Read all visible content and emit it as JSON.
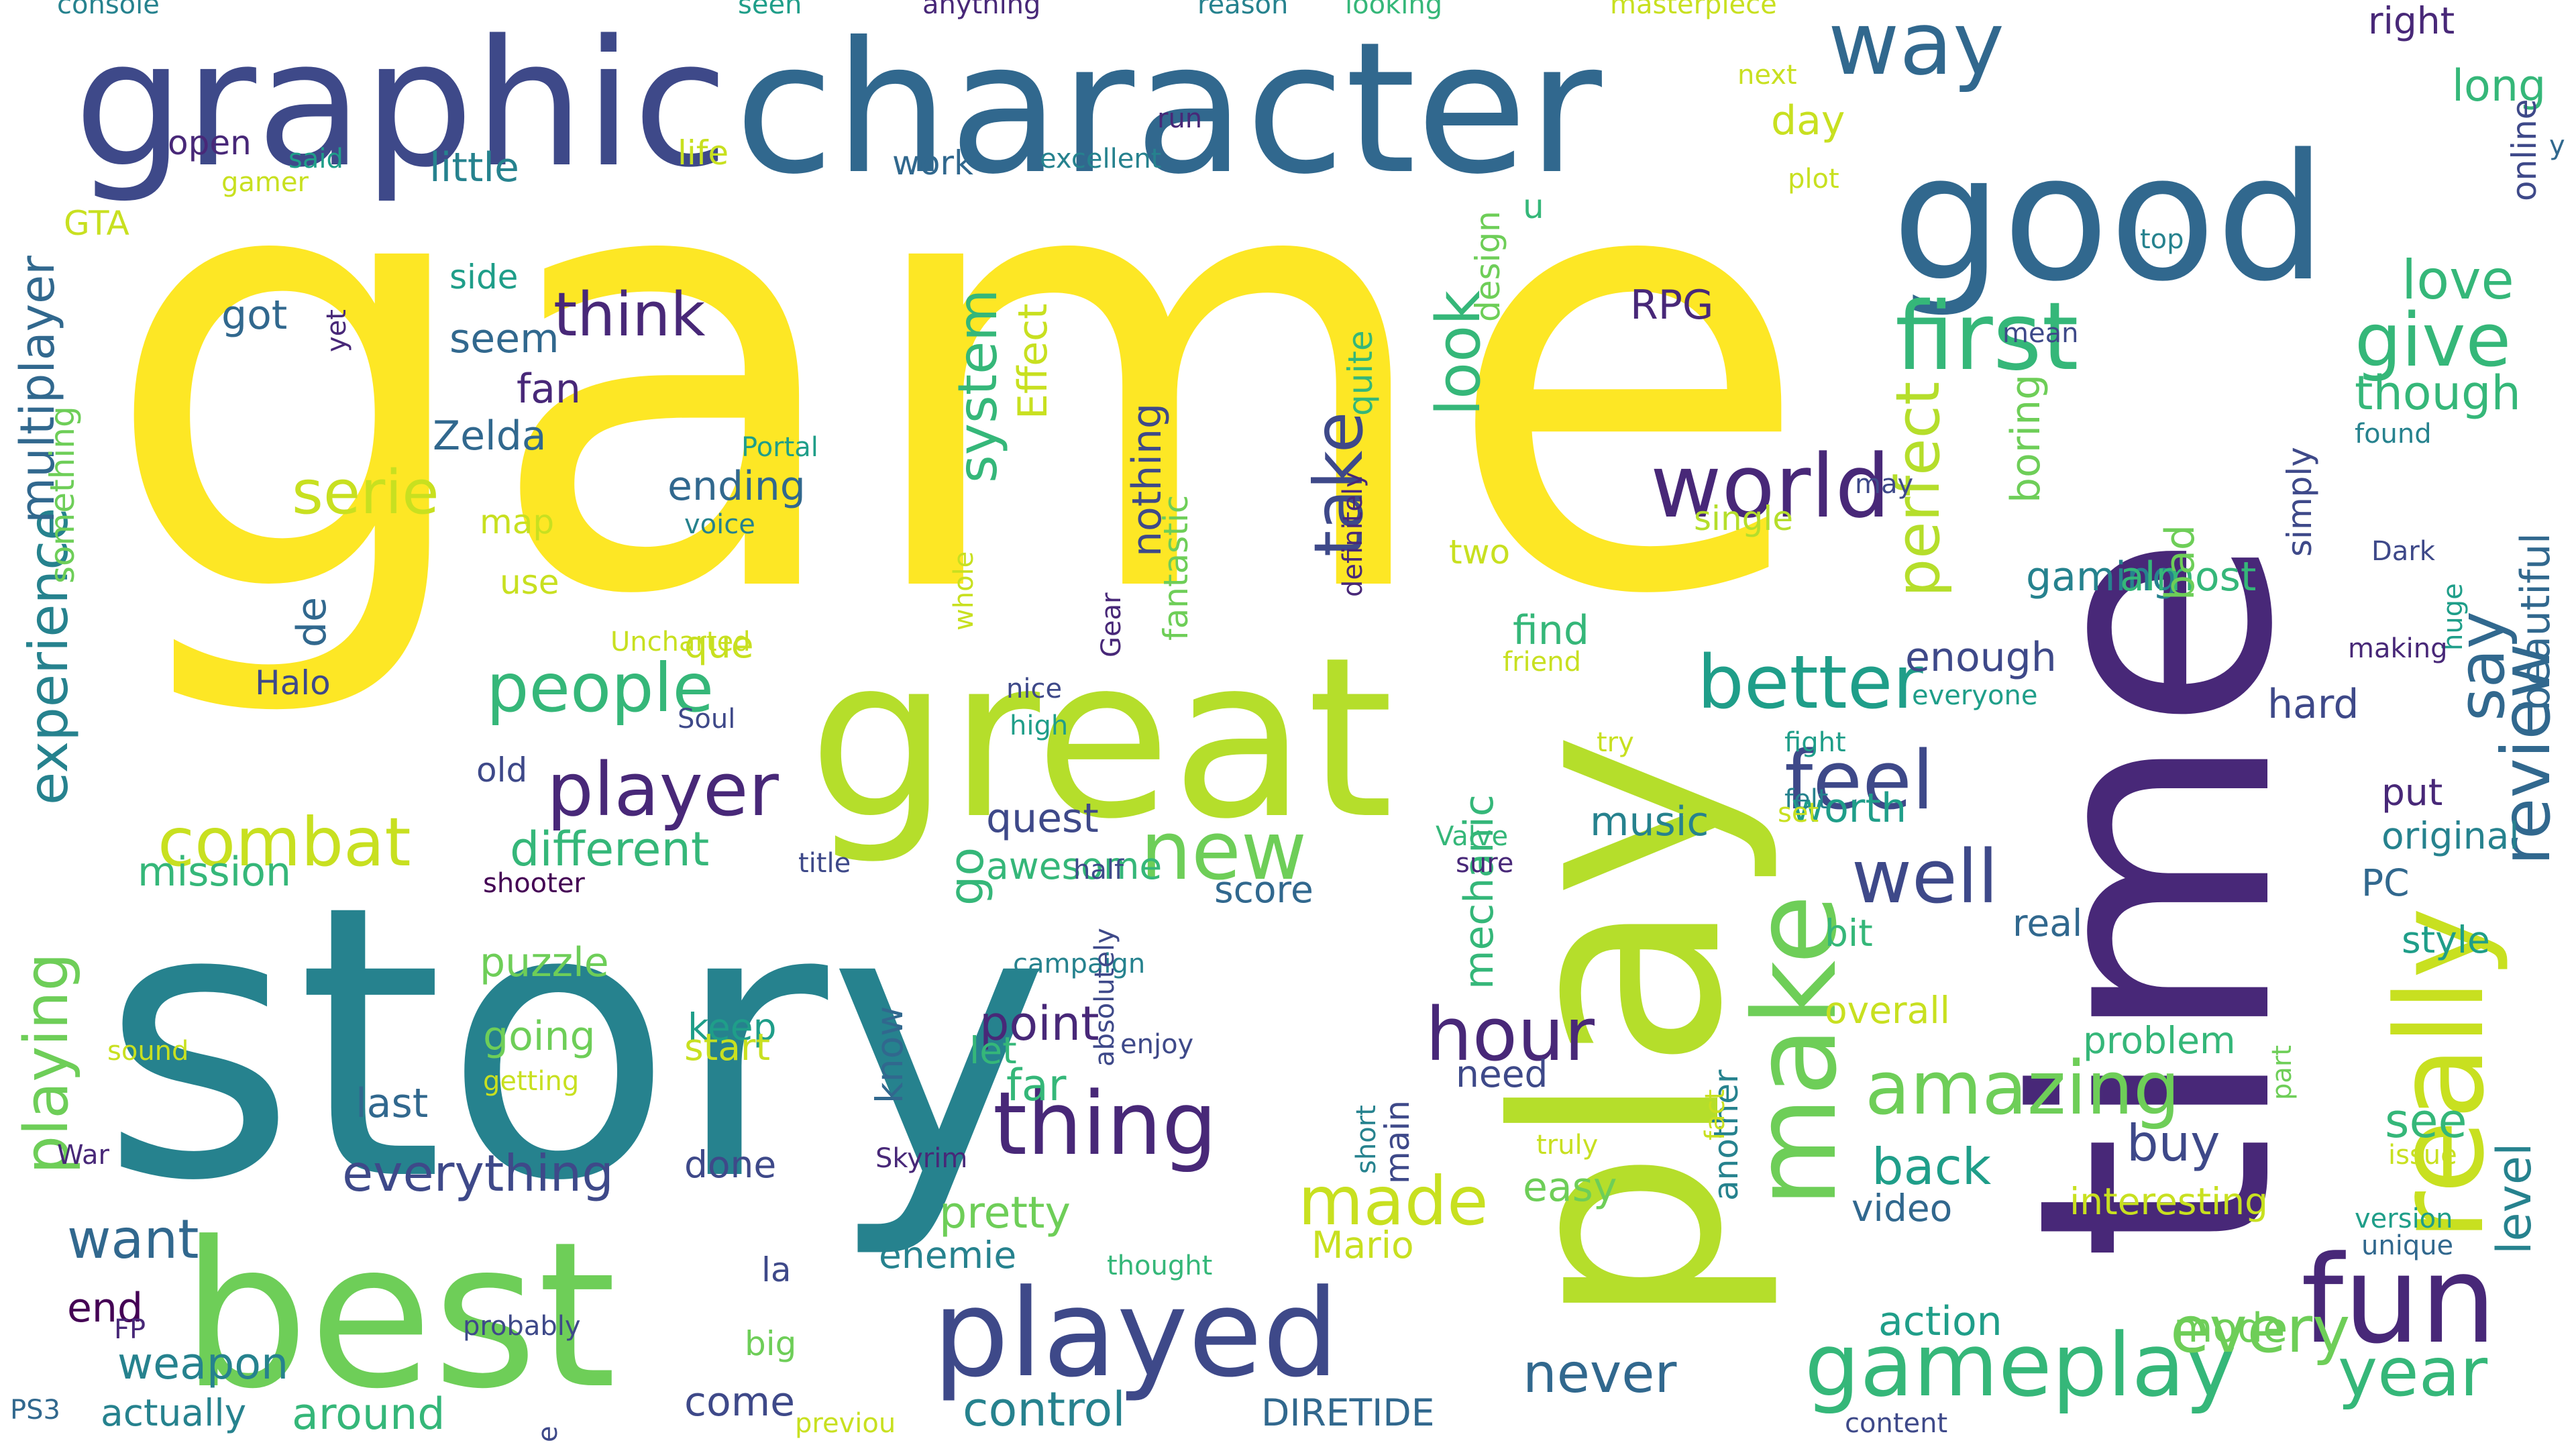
{
  "colors": {
    "background": "#ffffff",
    "palette": [
      "#fde725",
      "#b5de2b",
      "#6ece58",
      "#35b779",
      "#1f9e89",
      "#26828e",
      "#31688e",
      "#3e4989",
      "#482878",
      "#440154"
    ]
  },
  "words": [
    {
      "text": "game",
      "color": "#fde725"
    },
    {
      "text": "story",
      "color": "#26828e"
    },
    {
      "text": "time",
      "color": "#482878"
    },
    {
      "text": "play",
      "color": "#b5de2b"
    },
    {
      "text": "great",
      "color": "#b5de2b"
    },
    {
      "text": "best",
      "color": "#6ece58"
    },
    {
      "text": "good",
      "color": "#31688e"
    },
    {
      "text": "character",
      "color": "#31688e"
    },
    {
      "text": "graphic",
      "color": "#3e4989"
    },
    {
      "text": "really",
      "color": "#c8e020"
    },
    {
      "text": "played",
      "color": "#3e4989"
    },
    {
      "text": "fun",
      "color": "#482878"
    },
    {
      "text": "make",
      "color": "#6ece58"
    },
    {
      "text": "gameplay",
      "color": "#35b779"
    },
    {
      "text": "first",
      "color": "#35b779"
    },
    {
      "text": "world",
      "color": "#482878"
    },
    {
      "text": "new",
      "color": "#6ece58"
    },
    {
      "text": "thing",
      "color": "#482878"
    },
    {
      "text": "well",
      "color": "#3e4989"
    },
    {
      "text": "amazing",
      "color": "#6ece58"
    },
    {
      "text": "better",
      "color": "#1f9e89"
    },
    {
      "text": "people",
      "color": "#35b779"
    },
    {
      "text": "player",
      "color": "#482878"
    },
    {
      "text": "feel",
      "color": "#3e4989"
    },
    {
      "text": "give",
      "color": "#35b779"
    },
    {
      "text": "way",
      "color": "#31688e"
    },
    {
      "text": "hour",
      "color": "#482878"
    },
    {
      "text": "made",
      "color": "#c8e020"
    },
    {
      "text": "year",
      "color": "#35b779"
    },
    {
      "text": "never",
      "color": "#31688e"
    },
    {
      "text": "level",
      "color": "#26828e"
    },
    {
      "text": "combat",
      "color": "#c8e020"
    },
    {
      "text": "every",
      "color": "#6ece58"
    },
    {
      "text": "review",
      "color": "#31688e"
    },
    {
      "text": "want",
      "color": "#31688e"
    },
    {
      "text": "say",
      "color": "#31688e"
    },
    {
      "text": "love",
      "color": "#35b779"
    },
    {
      "text": "think",
      "color": "#482878"
    },
    {
      "text": "playing",
      "color": "#6ece58"
    },
    {
      "text": "serie",
      "color": "#c8e020"
    },
    {
      "text": "experience",
      "color": "#26828e"
    },
    {
      "text": "take",
      "color": "#3e4989"
    },
    {
      "text": "look",
      "color": "#35b779"
    },
    {
      "text": "system",
      "color": "#35b779"
    },
    {
      "text": "perfect",
      "color": "#b5de2b"
    },
    {
      "text": "everything",
      "color": "#3e4989"
    },
    {
      "text": "control",
      "color": "#26828e"
    },
    {
      "text": "multiplayer",
      "color": "#31688e"
    },
    {
      "text": "different",
      "color": "#35b779"
    },
    {
      "text": "go",
      "color": "#35b779"
    },
    {
      "text": "buy",
      "color": "#3e4989"
    },
    {
      "text": "back",
      "color": "#1f9e89"
    },
    {
      "text": "see",
      "color": "#35b779"
    },
    {
      "text": "though",
      "color": "#35b779"
    },
    {
      "text": "beautiful",
      "color": "#31688e"
    },
    {
      "text": "long",
      "color": "#35b779"
    },
    {
      "text": "action",
      "color": "#1f9e89"
    },
    {
      "text": "mode",
      "color": "#6ece58"
    },
    {
      "text": "point",
      "color": "#482878"
    },
    {
      "text": "far",
      "color": "#35b779"
    },
    {
      "text": "pretty",
      "color": "#6ece58"
    },
    {
      "text": "little",
      "color": "#26828e"
    },
    {
      "text": "quest",
      "color": "#3e4989"
    },
    {
      "text": "end",
      "color": "#440154"
    },
    {
      "text": "around",
      "color": "#35b779"
    },
    {
      "text": "weapon",
      "color": "#26828e"
    },
    {
      "text": "mission",
      "color": "#35b779"
    },
    {
      "text": "going",
      "color": "#6ece58"
    },
    {
      "text": "puzzle",
      "color": "#6ece58"
    },
    {
      "text": "last",
      "color": "#31688e"
    },
    {
      "text": "come",
      "color": "#3e4989"
    },
    {
      "text": "fan",
      "color": "#482878"
    },
    {
      "text": "Zelda",
      "color": "#31688e"
    },
    {
      "text": "ending",
      "color": "#31688e"
    },
    {
      "text": "got",
      "color": "#31688e"
    },
    {
      "text": "seem",
      "color": "#31688e"
    },
    {
      "text": "side",
      "color": "#1f9e89"
    },
    {
      "text": "GTA",
      "color": "#c8e020"
    },
    {
      "text": "open",
      "color": "#482878"
    },
    {
      "text": "work",
      "color": "#31688e"
    },
    {
      "text": "life",
      "color": "#c8e020"
    },
    {
      "text": "nothing",
      "color": "#3e4989"
    },
    {
      "text": "fantastic",
      "color": "#6ece58"
    },
    {
      "text": "quite",
      "color": "#35b779"
    },
    {
      "text": "design",
      "color": "#6ece58"
    },
    {
      "text": "Effect",
      "color": "#c8e020"
    },
    {
      "text": "RPG",
      "color": "#482878"
    },
    {
      "text": "two",
      "color": "#c8e020"
    },
    {
      "text": "find",
      "color": "#35b779"
    },
    {
      "text": "music",
      "color": "#26828e"
    },
    {
      "text": "worth",
      "color": "#1f9e89"
    },
    {
      "text": "gaming",
      "color": "#26828e"
    },
    {
      "text": "almost",
      "color": "#35b779"
    },
    {
      "text": "hard",
      "color": "#3e4989"
    },
    {
      "text": "enough",
      "color": "#3e4989"
    },
    {
      "text": "boring",
      "color": "#6ece58"
    },
    {
      "text": "single",
      "color": "#b5de2b"
    },
    {
      "text": "day",
      "color": "#c8e020"
    },
    {
      "text": "right",
      "color": "#482878"
    },
    {
      "text": "online",
      "color": "#3e4989"
    },
    {
      "text": "simply",
      "color": "#3e4989"
    },
    {
      "text": "original",
      "color": "#26828e"
    },
    {
      "text": "put",
      "color": "#482878"
    },
    {
      "text": "PC",
      "color": "#31688e"
    },
    {
      "text": "style",
      "color": "#1f9e89"
    },
    {
      "text": "part",
      "color": "#6ece58"
    },
    {
      "text": "interesting",
      "color": "#c8e020"
    },
    {
      "text": "video",
      "color": "#31688e"
    },
    {
      "text": "overall",
      "color": "#c8e020"
    },
    {
      "text": "problem",
      "color": "#35b779"
    },
    {
      "text": "bit",
      "color": "#35b779"
    },
    {
      "text": "real",
      "color": "#31688e"
    },
    {
      "text": "easy",
      "color": "#6ece58"
    },
    {
      "text": "need",
      "color": "#3e4989"
    },
    {
      "text": "another",
      "color": "#26828e"
    },
    {
      "text": "mechanic",
      "color": "#35b779"
    },
    {
      "text": "bad",
      "color": "#6ece58"
    },
    {
      "text": "know",
      "color": "#31688e"
    },
    {
      "text": "awesome",
      "color": "#35b779"
    },
    {
      "text": "score",
      "color": "#31688e"
    },
    {
      "text": "let",
      "color": "#35b779"
    },
    {
      "text": "done",
      "color": "#3e4989"
    },
    {
      "text": "keep",
      "color": "#1f9e89"
    },
    {
      "text": "start",
      "color": "#c8e020"
    },
    {
      "text": "actually",
      "color": "#26828e"
    },
    {
      "text": "DIRETIDE",
      "color": "#31688e"
    },
    {
      "text": "enemie",
      "color": "#26828e"
    },
    {
      "text": "Mario",
      "color": "#c8e020"
    },
    {
      "text": "main",
      "color": "#3e4989"
    },
    {
      "text": "Halo",
      "color": "#3e4989"
    },
    {
      "text": "de",
      "color": "#31688e"
    },
    {
      "text": "use",
      "color": "#c8e020"
    },
    {
      "text": "map",
      "color": "#c8e020"
    },
    {
      "text": "something",
      "color": "#6ece58"
    },
    {
      "text": "old",
      "color": "#3e4989"
    },
    {
      "text": "big",
      "color": "#6ece58"
    },
    {
      "text": "la",
      "color": "#3e4989"
    },
    {
      "text": "que",
      "color": "#c8e020"
    },
    {
      "text": "u",
      "color": "#35b779"
    },
    {
      "text": "console",
      "color": "#26828e"
    },
    {
      "text": "seen",
      "color": "#1f9e89"
    },
    {
      "text": "anything",
      "color": "#482878"
    },
    {
      "text": "reason",
      "color": "#26828e"
    },
    {
      "text": "looking",
      "color": "#35b779"
    },
    {
      "text": "masterpiece",
      "color": "#c8e020"
    },
    {
      "text": "next",
      "color": "#c8e020"
    },
    {
      "text": "run",
      "color": "#482878"
    },
    {
      "text": "said",
      "color": "#1f9e89"
    },
    {
      "text": "excellent",
      "color": "#26828e"
    },
    {
      "text": "gamer",
      "color": "#c8e020"
    },
    {
      "text": "plot",
      "color": "#c8e020"
    },
    {
      "text": "y",
      "color": "#31688e"
    },
    {
      "text": "top",
      "color": "#26828e"
    },
    {
      "text": "mean",
      "color": "#3e4989"
    },
    {
      "text": "found",
      "color": "#26828e"
    },
    {
      "text": "may",
      "color": "#3e4989"
    },
    {
      "text": "Dark",
      "color": "#3e4989"
    },
    {
      "text": "huge",
      "color": "#1f9e89"
    },
    {
      "text": "making",
      "color": "#482878"
    },
    {
      "text": "everyone",
      "color": "#1f9e89"
    },
    {
      "text": "fight",
      "color": "#1f9e89"
    },
    {
      "text": "felt",
      "color": "#26828e"
    },
    {
      "text": "set",
      "color": "#c8e020"
    },
    {
      "text": "try",
      "color": "#c8e020"
    },
    {
      "text": "sure",
      "color": "#482878"
    },
    {
      "text": "friend",
      "color": "#c8e020"
    },
    {
      "text": "Valve",
      "color": "#35b779"
    },
    {
      "text": "Portal",
      "color": "#1f9e89"
    },
    {
      "text": "voice",
      "color": "#26828e"
    },
    {
      "text": "whole",
      "color": "#c8e020"
    },
    {
      "text": "Gear",
      "color": "#482878"
    },
    {
      "text": "definitely",
      "color": "#482878"
    },
    {
      "text": "Uncharted",
      "color": "#c8e020"
    },
    {
      "text": "nice",
      "color": "#3e4989"
    },
    {
      "text": "high",
      "color": "#1f9e89"
    },
    {
      "text": "Soul",
      "color": "#3e4989"
    },
    {
      "text": "half",
      "color": "#3e4989"
    },
    {
      "text": "title",
      "color": "#3e4989"
    },
    {
      "text": "shooter",
      "color": "#440154"
    },
    {
      "text": "campaign",
      "color": "#26828e"
    },
    {
      "text": "enjoy",
      "color": "#3e4989"
    },
    {
      "text": "absolutely",
      "color": "#3e4989"
    },
    {
      "text": "sound",
      "color": "#c8e020"
    },
    {
      "text": "getting",
      "color": "#c8e020"
    },
    {
      "text": "Skyrim",
      "color": "#482878"
    },
    {
      "text": "War",
      "color": "#482878"
    },
    {
      "text": "FP",
      "color": "#482878"
    },
    {
      "text": "probably",
      "color": "#3e4989"
    },
    {
      "text": "thought",
      "color": "#35b779"
    },
    {
      "text": "short",
      "color": "#26828e"
    },
    {
      "text": "truly",
      "color": "#c8e020"
    },
    {
      "text": "fact",
      "color": "#c8e020"
    },
    {
      "text": "PS3",
      "color": "#31688e"
    },
    {
      "text": "e",
      "color": "#3e4989"
    },
    {
      "text": "previou",
      "color": "#c8e020"
    },
    {
      "text": "content",
      "color": "#3e4989"
    },
    {
      "text": "version",
      "color": "#1f9e89"
    },
    {
      "text": "unique",
      "color": "#31688e"
    },
    {
      "text": "issue",
      "color": "#c8e020"
    },
    {
      "text": "yet",
      "color": "#482878"
    }
  ]
}
